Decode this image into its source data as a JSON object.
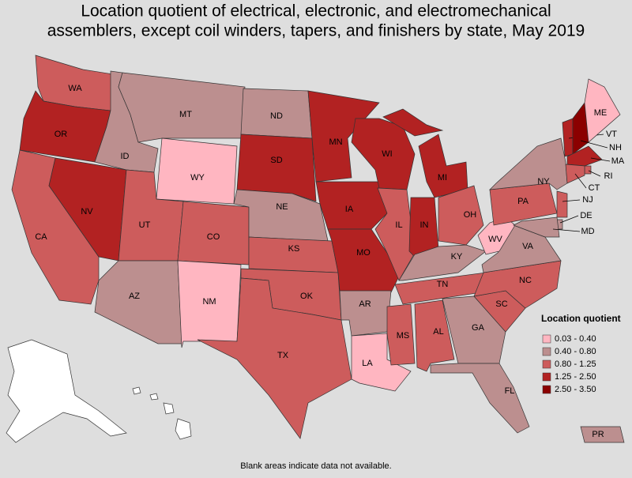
{
  "title": [
    "Location quotient of electrical, electronic, and electromechanical",
    "assemblers, except coil winders, tapers, and finishers by state, May 2019"
  ],
  "legend": {
    "title": "Location quotient",
    "items": [
      {
        "label": "0.03 - 0.40",
        "color": "#ffb6c1"
      },
      {
        "label": "0.40 - 0.80",
        "color": "#bc8f8f"
      },
      {
        "label": "0.80 - 1.25",
        "color": "#cd5c5c"
      },
      {
        "label": "1.25 - 2.50",
        "color": "#b22222"
      },
      {
        "label": "2.50 - 3.50",
        "color": "#8b0000"
      }
    ]
  },
  "states": [
    {
      "label": "WA",
      "color": "#cd5c5c"
    },
    {
      "label": "OR",
      "color": "#b22222"
    },
    {
      "label": "CA",
      "color": "#cd5c5c"
    },
    {
      "label": "NV",
      "color": "#b22222"
    },
    {
      "label": "ID",
      "color": "#bc8f8f"
    },
    {
      "label": "MT",
      "color": "#bc8f8f"
    },
    {
      "label": "WY",
      "color": "#ffb6c1"
    },
    {
      "label": "UT",
      "color": "#cd5c5c"
    },
    {
      "label": "AZ",
      "color": "#bc8f8f"
    },
    {
      "label": "CO",
      "color": "#cd5c5c"
    },
    {
      "label": "NM",
      "color": "#ffb6c1"
    },
    {
      "label": "ND",
      "color": "#bc8f8f"
    },
    {
      "label": "SD",
      "color": "#b22222"
    },
    {
      "label": "NE",
      "color": "#bc8f8f"
    },
    {
      "label": "KS",
      "color": "#cd5c5c"
    },
    {
      "label": "OK",
      "color": "#cd5c5c"
    },
    {
      "label": "TX",
      "color": "#cd5c5c"
    },
    {
      "label": "MN",
      "color": "#b22222"
    },
    {
      "label": "IA",
      "color": "#b22222"
    },
    {
      "label": "MO",
      "color": "#b22222"
    },
    {
      "label": "AR",
      "color": "#bc8f8f"
    },
    {
      "label": "LA",
      "color": "#ffb6c1"
    },
    {
      "label": "WI",
      "color": "#b22222"
    },
    {
      "label": "IL",
      "color": "#cd5c5c"
    },
    {
      "label": "MI",
      "color": "#b22222"
    },
    {
      "label": "IN",
      "color": "#b22222"
    },
    {
      "label": "OH",
      "color": "#cd5c5c"
    },
    {
      "label": "KY",
      "color": "#bc8f8f"
    },
    {
      "label": "TN",
      "color": "#cd5c5c"
    },
    {
      "label": "MS",
      "color": "#cd5c5c"
    },
    {
      "label": "AL",
      "color": "#cd5c5c"
    },
    {
      "label": "GA",
      "color": "#bc8f8f"
    },
    {
      "label": "FL",
      "color": "#bc8f8f"
    },
    {
      "label": "SC",
      "color": "#cd5c5c"
    },
    {
      "label": "NC",
      "color": "#cd5c5c"
    },
    {
      "label": "VA",
      "color": "#bc8f8f"
    },
    {
      "label": "WV",
      "color": "#ffb6c1"
    },
    {
      "label": "PA",
      "color": "#cd5c5c"
    },
    {
      "label": "NY",
      "color": "#bc8f8f"
    },
    {
      "label": "VT",
      "color": "#b22222"
    },
    {
      "label": "NH",
      "color": "#8b0000"
    },
    {
      "label": "ME",
      "color": "#ffb6c1"
    },
    {
      "label": "MA",
      "color": "#b22222"
    },
    {
      "label": "RI",
      "color": "#cd5c5c"
    },
    {
      "label": "CT",
      "color": "#cd5c5c"
    },
    {
      "label": "NJ",
      "color": "#cd5c5c"
    },
    {
      "label": "DE",
      "color": "#bc8f8f"
    },
    {
      "label": "MD",
      "color": "#bc8f8f"
    },
    {
      "label": "PR",
      "color": "#bc8f8f"
    }
  ],
  "footnote": "Blank areas indicate data not available."
}
